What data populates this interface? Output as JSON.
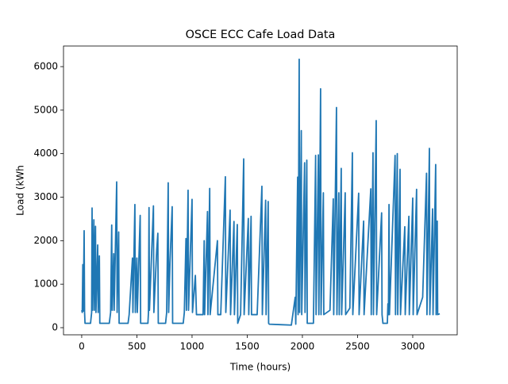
{
  "chart_data": {
    "type": "line",
    "title": "OSCE ECC Cafe Load Data",
    "x_label": "Time (hours)",
    "y_label": "Load (kWh",
    "xlim": [
      -165,
      3403
    ],
    "ylim": [
      -164,
      6474
    ],
    "xticks": [
      0,
      500,
      1000,
      1500,
      2000,
      2500,
      3000
    ],
    "yticks": [
      0,
      1000,
      2000,
      3000,
      4000,
      5000,
      6000
    ],
    "series": [
      {
        "color": "#1f77b4",
        "x": [
          0,
          5,
          10,
          14,
          22,
          26,
          30,
          80,
          90,
          94,
          98,
          110,
          114,
          125,
          129,
          145,
          149,
          160,
          164,
          250,
          262,
          272,
          276,
          290,
          294,
          317,
          321,
          335,
          339,
          420,
          430,
          460,
          464,
          482,
          486,
          500,
          504,
          530,
          534,
          600,
          605,
          610,
          614,
          650,
          654,
          680,
          690,
          694,
          760,
          770,
          784,
          788,
          800,
          820,
          824,
          920,
          930,
          945,
          949,
          964,
          968,
          1000,
          1004,
          1030,
          1040,
          1100,
          1110,
          1114,
          1140,
          1144,
          1160,
          1164,
          1230,
          1234,
          1260,
          1302,
          1306,
          1345,
          1349,
          1380,
          1384,
          1410,
          1414,
          1440,
          1468,
          1472,
          1510,
          1514,
          1535,
          1539,
          1590,
          1633,
          1637,
          1667,
          1671,
          1690,
          1694,
          1700,
          1800,
          1900,
          1935,
          1940,
          1957,
          1961,
          1971,
          1975,
          1990,
          1994,
          2020,
          2024,
          2040,
          2044,
          2100,
          2120,
          2124,
          2145,
          2149,
          2165,
          2169,
          2190,
          2194,
          2250,
          2280,
          2284,
          2309,
          2313,
          2330,
          2334,
          2352,
          2356,
          2388,
          2392,
          2430,
          2453,
          2457,
          2510,
          2514,
          2555,
          2559,
          2620,
          2624,
          2640,
          2644,
          2669,
          2673,
          2718,
          2722,
          2730,
          2770,
          2775,
          2780,
          2785,
          2789,
          2840,
          2844,
          2860,
          2864,
          2885,
          2889,
          2928,
          2932,
          2965,
          2969,
          3000,
          3004,
          3035,
          3039,
          3090,
          3125,
          3129,
          3151,
          3155,
          3180,
          3184,
          3208,
          3212,
          3222,
          3226,
          3245
        ],
        "values": [
          400,
          350,
          1450,
          380,
          2230,
          360,
          100,
          100,
          350,
          2750,
          400,
          2480,
          400,
          2330,
          350,
          1900,
          350,
          1650,
          100,
          100,
          350,
          2360,
          400,
          1700,
          400,
          3350,
          350,
          2200,
          100,
          100,
          300,
          1600,
          350,
          2830,
          350,
          1600,
          350,
          2580,
          100,
          100,
          350,
          2760,
          400,
          2800,
          350,
          1800,
          2170,
          100,
          100,
          350,
          3330,
          350,
          1500,
          2780,
          100,
          100,
          350,
          2050,
          400,
          3160,
          400,
          2950,
          350,
          1200,
          300,
          300,
          2000,
          300,
          2670,
          300,
          3200,
          300,
          2000,
          300,
          300,
          3470,
          350,
          2700,
          300,
          2440,
          300,
          2370,
          100,
          300,
          3880,
          300,
          2510,
          300,
          2560,
          300,
          300,
          3250,
          300,
          2930,
          300,
          2900,
          100,
          80,
          70,
          60,
          700,
          80,
          3460,
          300,
          6170,
          350,
          4530,
          300,
          3790,
          350,
          3850,
          100,
          100,
          3960,
          300,
          3970,
          300,
          5490,
          300,
          3100,
          300,
          400,
          2960,
          300,
          5060,
          300,
          3100,
          300,
          3660,
          300,
          3100,
          300,
          450,
          4020,
          300,
          3090,
          300,
          2450,
          300,
          3190,
          300,
          4020,
          300,
          4760,
          300,
          2640,
          300,
          100,
          100,
          550,
          300,
          2830,
          300,
          3960,
          300,
          4000,
          300,
          3640,
          300,
          2320,
          300,
          2560,
          300,
          2980,
          300,
          3180,
          300,
          700,
          3550,
          300,
          4120,
          300,
          2730,
          300,
          3750,
          300,
          2450,
          300,
          320
        ]
      }
    ]
  }
}
